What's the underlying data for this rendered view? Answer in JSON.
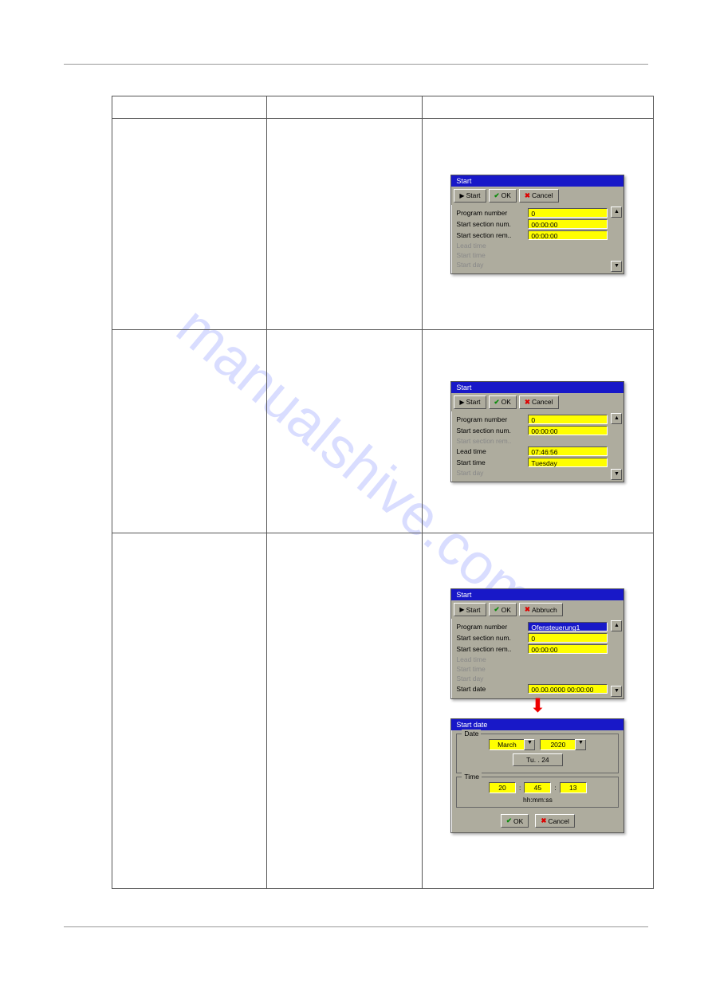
{
  "watermark": "manualshive.com",
  "dialog1": {
    "title": "Start",
    "buttons": {
      "start": "Start",
      "ok": "OK",
      "cancel": "Cancel"
    },
    "rows": {
      "program_number": {
        "label": "Program number",
        "value": "0",
        "active": true
      },
      "start_section_num": {
        "label": "Start section num.",
        "value": "00:00:00",
        "active": true
      },
      "start_section_rem": {
        "label": "Start section rem..",
        "value": "00:00:00",
        "active": true
      },
      "lead_time": {
        "label": "Lead time",
        "value": "",
        "active": false
      },
      "start_time": {
        "label": "Start time",
        "value": "",
        "active": false
      },
      "start_day": {
        "label": "Start day",
        "value": "",
        "active": false
      }
    },
    "colors": {
      "titlebar": "#1818c8",
      "field": "#ffff00",
      "bg": "#aeac9e"
    }
  },
  "dialog2": {
    "title": "Start",
    "buttons": {
      "start": "Start",
      "ok": "OK",
      "cancel": "Cancel"
    },
    "rows": {
      "program_number": {
        "label": "Program number",
        "value": "0",
        "active": true
      },
      "start_section_num": {
        "label": "Start section num.",
        "value": "00:00:00",
        "active": true
      },
      "start_section_rem": {
        "label": "Start section rem..",
        "value": "",
        "active": false
      },
      "lead_time": {
        "label": "Lead time",
        "value": "07:46:56",
        "active": true
      },
      "start_time": {
        "label": "Start time",
        "value": "Tuesday",
        "active": true
      },
      "start_day": {
        "label": "Start day",
        "value": "",
        "active": false
      }
    }
  },
  "dialog3": {
    "title": "Start",
    "buttons": {
      "start": "Start",
      "ok": "OK",
      "cancel": "Abbruch"
    },
    "rows": {
      "program_number": {
        "label": "Program number",
        "value": "Ofensteuerung1",
        "active": true,
        "selected": true
      },
      "start_section_num": {
        "label": "Start section num.",
        "value": "0",
        "active": true
      },
      "start_section_rem": {
        "label": "Start section rem..",
        "value": "00:00:00",
        "active": true
      },
      "lead_time": {
        "label": "Lead time",
        "value": "",
        "active": false
      },
      "start_time": {
        "label": "Start time",
        "value": "",
        "active": false
      },
      "start_day": {
        "label": "Start day",
        "value": "",
        "active": false
      },
      "start_date": {
        "label": "Start date",
        "value": "00.00.0000 00:00:00",
        "active": true
      }
    }
  },
  "date_dialog": {
    "title": "Start date",
    "date_section": {
      "label": "Date",
      "month": "March",
      "year": "2020",
      "day": "Tu. . 24"
    },
    "time_section": {
      "label": "Time",
      "hh": "20",
      "mm": "45",
      "ss": "13",
      "hint": "hh:mm:ss"
    },
    "buttons": {
      "ok": "OK",
      "cancel": "Cancel"
    }
  }
}
